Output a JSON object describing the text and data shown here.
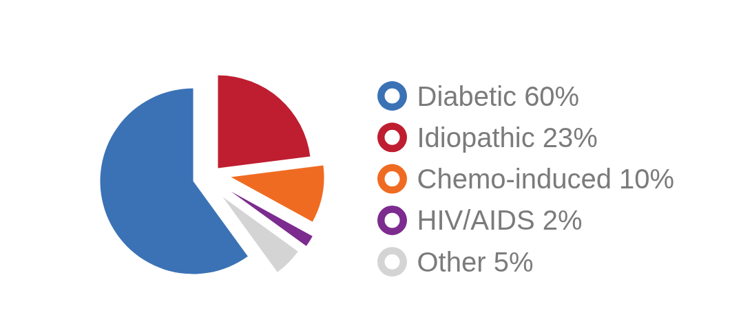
{
  "chart_data": {
    "type": "pie",
    "categories": [
      "Diabetic",
      "Idiopathic",
      "Chemo-induced",
      "HIV/AIDS",
      "Other"
    ],
    "values": [
      60,
      23,
      10,
      2,
      5
    ],
    "colors": [
      "#3b72b6",
      "#be1e30",
      "#f06b22",
      "#7c2b8f",
      "#d4d4d4"
    ],
    "value_labels": [
      "60%",
      "23%",
      "10%",
      "2%",
      "5%"
    ],
    "legend": "right"
  }
}
